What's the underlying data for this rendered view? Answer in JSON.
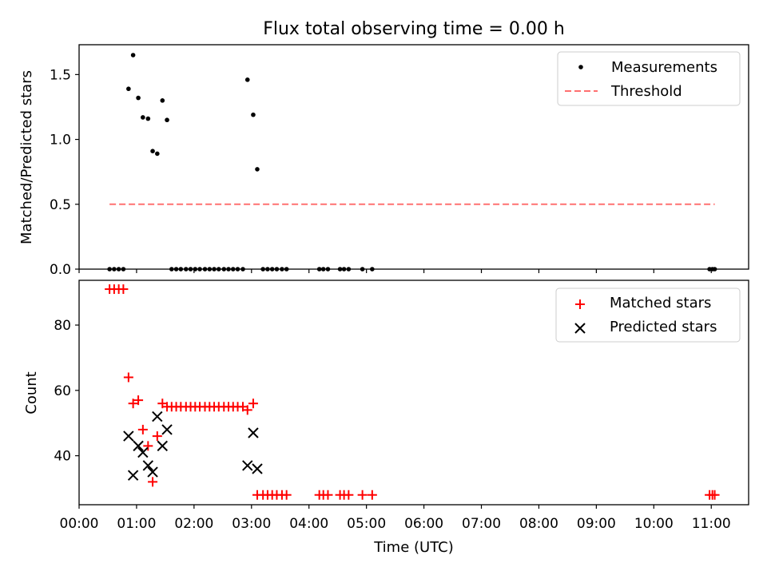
{
  "chart_data": [
    {
      "type": "scatter",
      "title": "Flux total observing time = 0.00 h",
      "xlabel": "",
      "ylabel": "Matched/Predicted stars",
      "xlim": [
        0.0,
        11.65
      ],
      "ylim": [
        0.0,
        1.73
      ],
      "yticks": [
        0.0,
        0.5,
        1.0,
        1.5
      ],
      "ytick_labels": [
        "0.0",
        "0.5",
        "1.0",
        "1.5"
      ],
      "legend_position": "top-right",
      "series": [
        {
          "name": "Measurements",
          "marker": "dot",
          "color": "#000000",
          "x": [
            0.53,
            0.61,
            0.69,
            0.77,
            0.86,
            0.94,
            1.03,
            1.11,
            1.2,
            1.28,
            1.36,
            1.45,
            1.53,
            1.61,
            1.69,
            1.77,
            1.86,
            1.94,
            2.02,
            2.1,
            2.19,
            2.27,
            2.35,
            2.43,
            2.52,
            2.6,
            2.68,
            2.76,
            2.85,
            2.93,
            3.03,
            3.1,
            3.2,
            3.28,
            3.36,
            3.44,
            3.53,
            3.61,
            4.18,
            4.25,
            4.33,
            4.54,
            4.61,
            4.69,
            4.93,
            5.1,
            10.97,
            11.02,
            11.06
          ],
          "y": [
            0.0,
            0.0,
            0.0,
            0.0,
            1.39,
            1.65,
            1.32,
            1.17,
            1.16,
            0.91,
            0.89,
            1.3,
            1.15,
            0.0,
            0.0,
            0.0,
            0.0,
            0.0,
            0.0,
            0.0,
            0.0,
            0.0,
            0.0,
            0.0,
            0.0,
            0.0,
            0.0,
            0.0,
            0.0,
            1.46,
            1.19,
            0.77,
            0.0,
            0.0,
            0.0,
            0.0,
            0.0,
            0.0,
            0.0,
            0.0,
            0.0,
            0.0,
            0.0,
            0.0,
            0.0,
            0.0,
            0.0,
            0.0,
            0.0
          ]
        },
        {
          "name": "Threshold",
          "style": "dashed-line",
          "color": "#ff7070",
          "x": [
            0.53,
            11.06
          ],
          "y": [
            0.5,
            0.5
          ]
        }
      ]
    },
    {
      "type": "scatter",
      "title": "",
      "xlabel": "Time (UTC)",
      "ylabel": "Count",
      "xlim": [
        0.0,
        11.65
      ],
      "ylim": [
        25.0,
        93.7
      ],
      "xticks": [
        0,
        1,
        2,
        3,
        4,
        5,
        6,
        7,
        8,
        9,
        10,
        11
      ],
      "xtick_labels": [
        "00:00",
        "01:00",
        "02:00",
        "03:00",
        "04:00",
        "05:00",
        "06:00",
        "07:00",
        "08:00",
        "09:00",
        "10:00",
        "11:00"
      ],
      "yticks": [
        40,
        60,
        80
      ],
      "ytick_labels": [
        "40",
        "60",
        "80"
      ],
      "legend_position": "top-right",
      "series": [
        {
          "name": "Matched stars",
          "marker": "plus",
          "color": "#ff0000",
          "x": [
            0.53,
            0.61,
            0.69,
            0.77,
            0.86,
            0.94,
            1.03,
            1.11,
            1.2,
            1.28,
            1.36,
            1.45,
            1.53,
            1.61,
            1.69,
            1.77,
            1.86,
            1.94,
            2.02,
            2.1,
            2.19,
            2.27,
            2.35,
            2.43,
            2.52,
            2.6,
            2.68,
            2.76,
            2.85,
            2.93,
            3.03,
            3.1,
            3.2,
            3.28,
            3.36,
            3.44,
            3.53,
            3.61,
            4.18,
            4.25,
            4.33,
            4.54,
            4.61,
            4.69,
            4.93,
            5.1,
            10.97,
            11.02,
            11.06
          ],
          "y": [
            91,
            91,
            91,
            91,
            64,
            56,
            57,
            48,
            43,
            32,
            46,
            56,
            55,
            55,
            55,
            55,
            55,
            55,
            55,
            55,
            55,
            55,
            55,
            55,
            55,
            55,
            55,
            55,
            55,
            54,
            56,
            28,
            28,
            28,
            28,
            28,
            28,
            28,
            28,
            28,
            28,
            28,
            28,
            28,
            28,
            28,
            28,
            28,
            28
          ]
        },
        {
          "name": "Predicted stars",
          "marker": "x",
          "color": "#000000",
          "x": [
            0.86,
            0.94,
            1.03,
            1.11,
            1.2,
            1.28,
            1.36,
            1.45,
            1.53,
            2.93,
            3.03,
            3.1
          ],
          "y": [
            46,
            34,
            43,
            41,
            37,
            35,
            52,
            43,
            48,
            37,
            47,
            36
          ]
        }
      ]
    }
  ]
}
